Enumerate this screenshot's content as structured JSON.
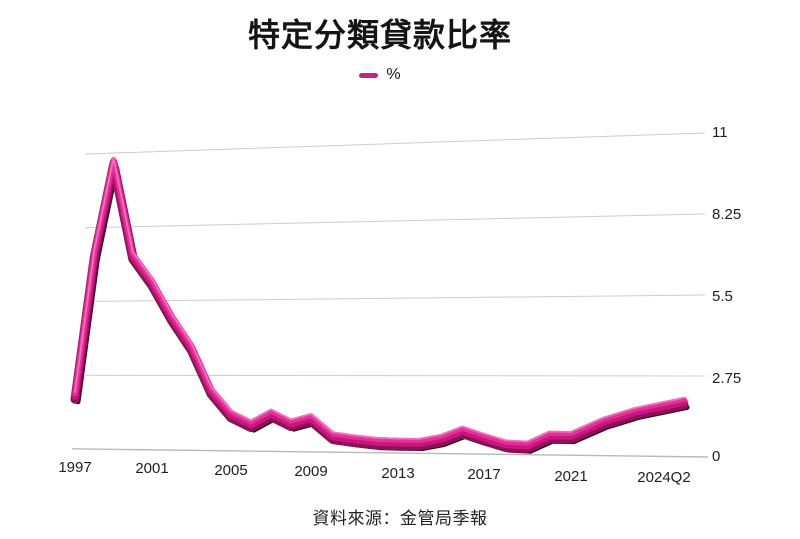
{
  "title": "特定分類貸款比率",
  "legend": {
    "label": "%",
    "color": "#c2267e"
  },
  "source": "資料來源：金管局季報",
  "chart_data": {
    "type": "line",
    "title": "特定分類貸款比率",
    "series_name": "%",
    "categories": [
      "1997",
      "1998",
      "1999",
      "2000",
      "2001",
      "2002",
      "2003",
      "2004",
      "2005",
      "2006",
      "2007",
      "2008",
      "2009",
      "2010",
      "2011",
      "2012",
      "2013",
      "2014",
      "2015",
      "2016",
      "2017",
      "2018",
      "2019",
      "2020",
      "2021",
      "2022",
      "2023",
      "2024Q2"
    ],
    "values": [
      2.0,
      7.3,
      10.7,
      7.2,
      6.2,
      4.9,
      3.8,
      2.2,
      1.35,
      1.0,
      1.4,
      1.05,
      1.25,
      0.6,
      0.5,
      0.42,
      0.4,
      0.4,
      0.55,
      0.85,
      0.6,
      0.38,
      0.35,
      0.7,
      0.7,
      1.2,
      1.55,
      1.9
    ],
    "xtick_labels": [
      "1997",
      "2001",
      "2005",
      "2009",
      "2013",
      "2017",
      "2021",
      "2024Q2"
    ],
    "ylabels": [
      11,
      8.25,
      5.5,
      2.75,
      0
    ],
    "ylim": [
      0,
      11
    ],
    "grid": true,
    "legend_position": "top",
    "perspective_3d": true,
    "line_color": "#c9157c",
    "line_dark_color": "#8e1157",
    "line_bright_color": "#e3309a",
    "line_highlight_color": "#f472ba",
    "line_shadow_color": "#1c040f",
    "gridline_color": "#cdcdcd",
    "axis_line_color": "#b9b9b9"
  }
}
